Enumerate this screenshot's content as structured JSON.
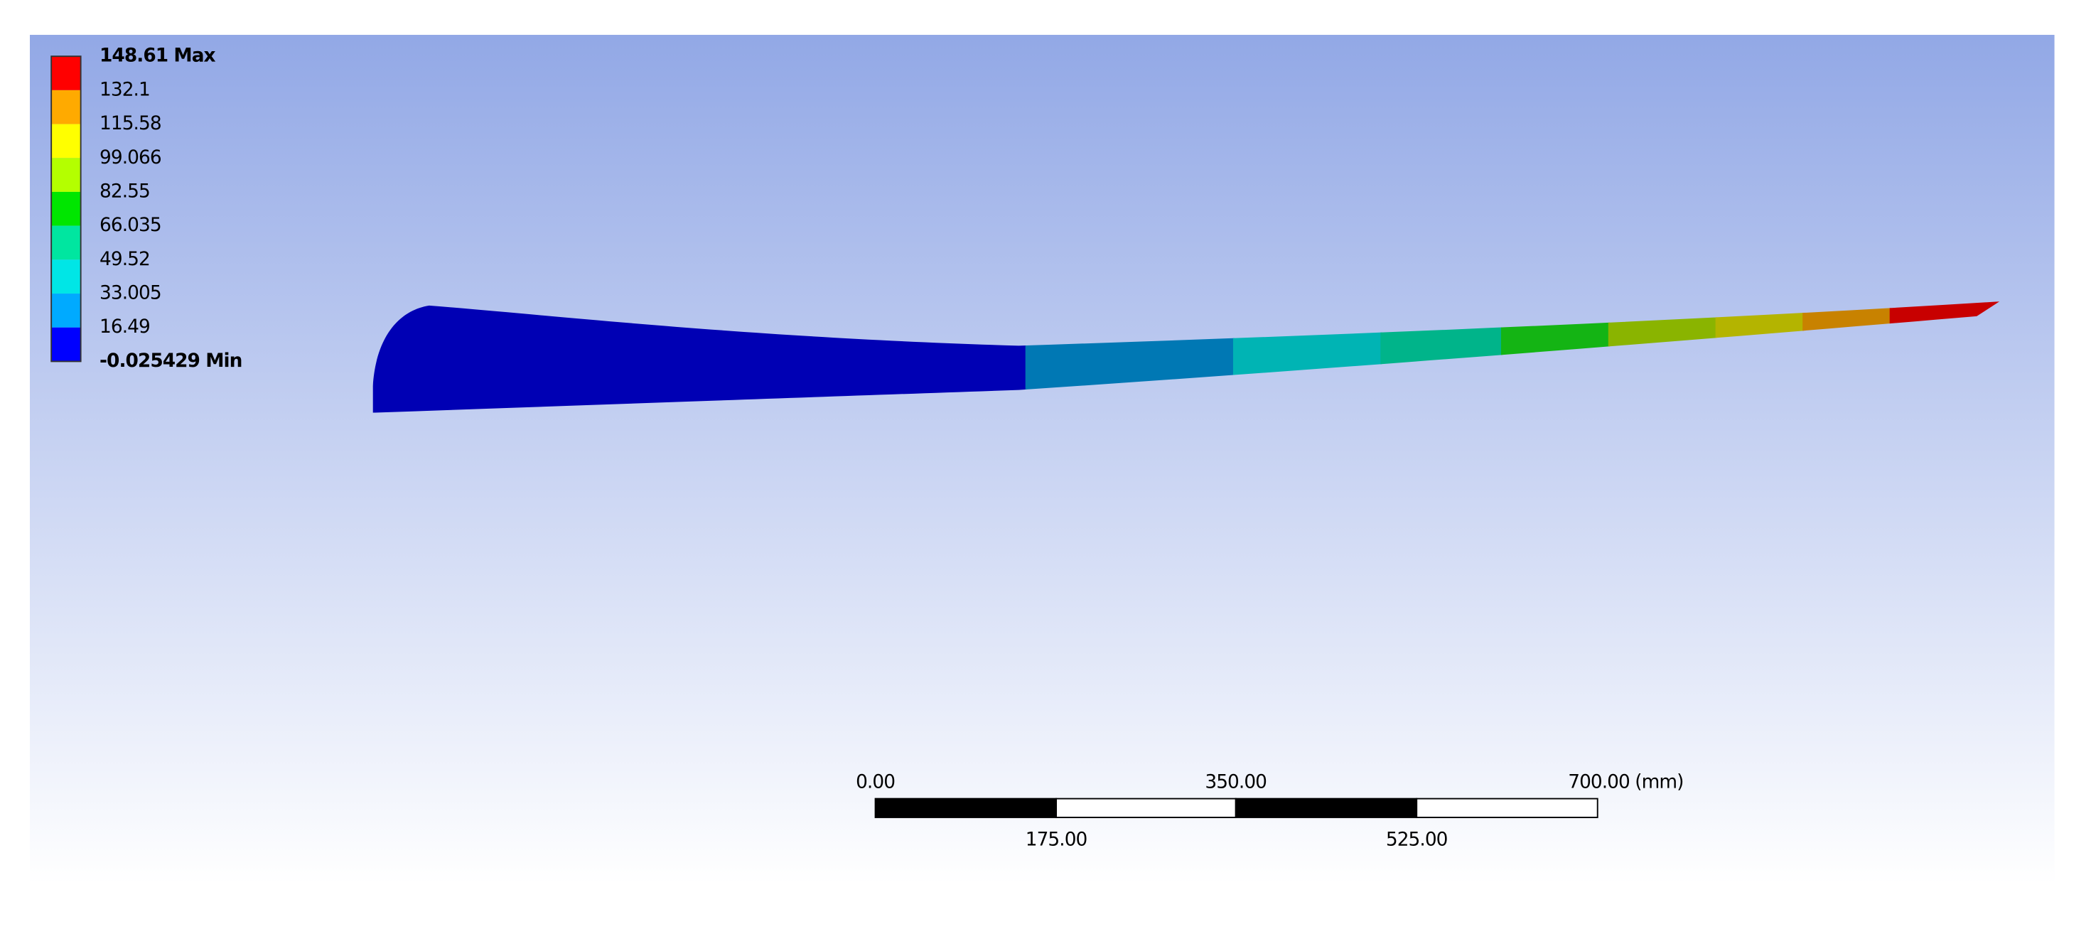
{
  "legend": {
    "entries": [
      {
        "label": "148.61 Max",
        "color": "#ff0000"
      },
      {
        "label": "132.1",
        "color": "#ffaa00"
      },
      {
        "label": "115.58",
        "color": "#ffff00"
      },
      {
        "label": "99.066",
        "color": "#b4ff00"
      },
      {
        "label": "82.55",
        "color": "#00e600"
      },
      {
        "label": "66.035",
        "color": "#00e6a0"
      },
      {
        "label": "49.52",
        "color": "#00e6e6"
      },
      {
        "label": "33.005",
        "color": "#00aaff"
      },
      {
        "label": "16.49",
        "color": "#0000ff"
      },
      {
        "label": "-0.025429 Min",
        "color": null
      }
    ]
  },
  "scale_bar": {
    "top_labels": [
      "0.00",
      "350.00",
      "700.00 (mm)"
    ],
    "bottom_labels": [
      "175.00",
      "525.00"
    ]
  }
}
